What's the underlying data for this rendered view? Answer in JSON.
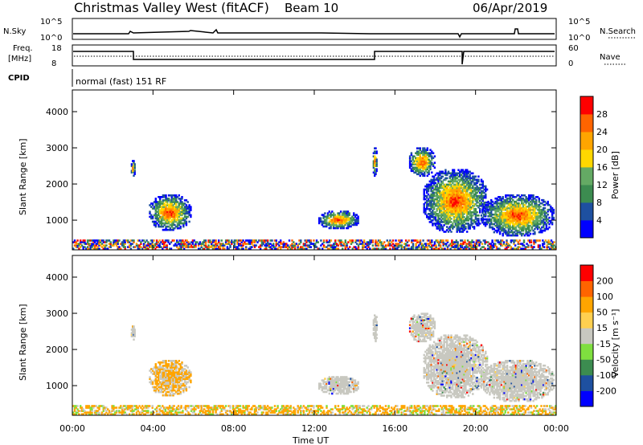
{
  "header": {
    "title": "Christmas Valley West (fitACF)",
    "beam": "Beam 10",
    "date": "06/Apr/2019"
  },
  "status": {
    "nsky_label": "N.Sky",
    "nsky_ticks": [
      "10^5",
      "10^0"
    ],
    "nsearch_label": "N.Search",
    "nsearch_ticks": [
      "10^5",
      "10^0"
    ],
    "freq_label_1": "Freq.",
    "freq_label_2": "[MHz]",
    "freq_ticks": [
      "18",
      "8"
    ],
    "nave_label": "Nave",
    "nave_ticks": [
      "60",
      "0"
    ],
    "cpid_label": "CPID",
    "cpid_text": "normal (fast) 151 RF"
  },
  "colors": {
    "power_scale": [
      "#0000ff",
      "#1e50a0",
      "#3c8c50",
      "#64aa64",
      "#ffd700",
      "#ffa500",
      "#ff6400",
      "#ff0000"
    ],
    "velocity_scale": [
      "#ff0000",
      "#ff6400",
      "#ffa500",
      "#ffd050",
      "#c8c8c0",
      "#7fdf3f",
      "#3c8c50",
      "#1e50a0",
      "#0000ff"
    ]
  },
  "chart_data": [
    {
      "type": "heatmap",
      "name": "power",
      "x_ticks": [
        "00:00",
        "04:00",
        "08:00",
        "12:00",
        "16:00",
        "20:00",
        "00:00"
      ],
      "xlabel": "Time UT",
      "ylabel": "Slant Range [km]",
      "y_ticks": [
        "1000",
        "2000",
        "3000",
        "4000"
      ],
      "ylim": [
        180,
        4600
      ],
      "colorbar_label": "Power [dB]",
      "colorbar_ticks": [
        "4",
        "8",
        "12",
        "16",
        "20",
        "24",
        "28"
      ],
      "regions": [
        {
          "t0": 3.8,
          "t1": 5.9,
          "r0": 700,
          "r1": 1700
        },
        {
          "t0": 12.2,
          "t1": 14.2,
          "r0": 750,
          "r1": 1250
        },
        {
          "t0": 17.4,
          "t1": 20.6,
          "r0": 650,
          "r1": 2400
        },
        {
          "t0": 20.3,
          "t1": 23.9,
          "r0": 550,
          "r1": 1700
        },
        {
          "t0": 2.9,
          "t1": 3.1,
          "r0": 2200,
          "r1": 2650
        },
        {
          "t0": 14.9,
          "t1": 15.1,
          "r0": 2200,
          "r1": 3000
        },
        {
          "t0": 16.7,
          "t1": 18.0,
          "r0": 2200,
          "r1": 3000
        },
        {
          "t0": 0.0,
          "t1": 24.0,
          "r0": 180,
          "r1": 450
        }
      ]
    },
    {
      "type": "heatmap",
      "name": "velocity",
      "x_ticks": [
        "00:00",
        "04:00",
        "08:00",
        "12:00",
        "16:00",
        "20:00",
        "00:00"
      ],
      "xlabel": "Time UT",
      "ylabel": "Slant Range [km]",
      "y_ticks": [
        "1000",
        "2000",
        "3000",
        "4000"
      ],
      "ylim": [
        180,
        4600
      ],
      "colorbar_label": "Velocity [m s⁻¹]",
      "colorbar_ticks": [
        "200",
        "100",
        "50",
        "15",
        "-15",
        "-50",
        "-100",
        "-200"
      ],
      "regions": [
        {
          "t0": 3.8,
          "t1": 5.9,
          "r0": 700,
          "r1": 1700
        },
        {
          "t0": 12.2,
          "t1": 14.2,
          "r0": 750,
          "r1": 1250
        },
        {
          "t0": 17.4,
          "t1": 20.6,
          "r0": 650,
          "r1": 2400
        },
        {
          "t0": 20.3,
          "t1": 23.9,
          "r0": 550,
          "r1": 1700
        },
        {
          "t0": 2.9,
          "t1": 3.1,
          "r0": 2200,
          "r1": 2650
        },
        {
          "t0": 14.9,
          "t1": 15.1,
          "r0": 2200,
          "r1": 3000
        },
        {
          "t0": 16.7,
          "t1": 18.0,
          "r0": 2200,
          "r1": 3000
        },
        {
          "t0": 0.0,
          "t1": 24.0,
          "r0": 180,
          "r1": 450
        }
      ]
    }
  ]
}
